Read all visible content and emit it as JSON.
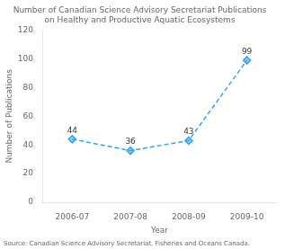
{
  "chart_data": {
    "type": "line",
    "title": [
      "Number of Canadian Science Advisory Secretariat Publications",
      "on Healthy and Productive Aquatic Ecosystems"
    ],
    "x_label": "Year",
    "y_label": "Number of Publications",
    "source": "Source: Canadian Science Advisory Secretariat, Fisheries and Oceans Canada.",
    "categories": [
      "2006-07",
      "2007-08",
      "2008-09",
      "2009-10"
    ],
    "values": [
      44,
      36,
      43,
      99
    ],
    "ylim": [
      0,
      120
    ],
    "yticks": [
      0,
      20,
      40,
      60,
      80,
      100,
      120
    ],
    "grid": false,
    "data_labels": true,
    "marker": "diamond",
    "line_style": "dashed"
  }
}
